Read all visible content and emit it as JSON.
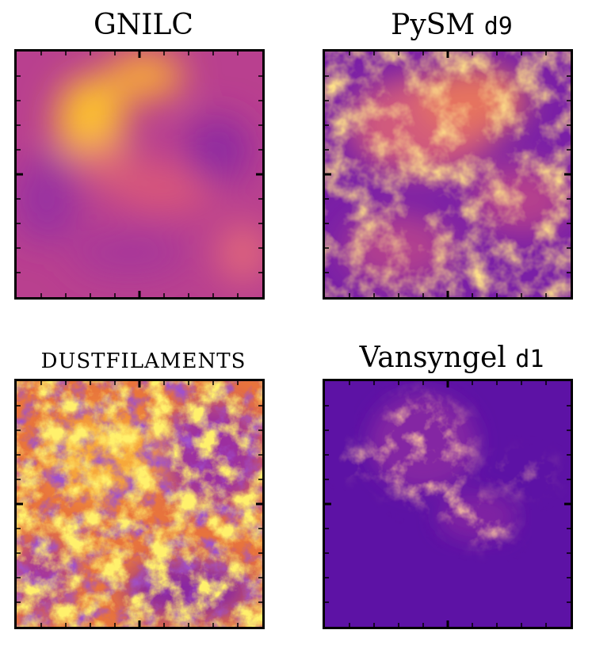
{
  "panels": [
    {
      "id": "gnilc",
      "title": "GNILC",
      "title_code": ""
    },
    {
      "id": "pysm",
      "title": "PySM ",
      "title_code": "d9"
    },
    {
      "id": "dustfilaments",
      "title": "DUSTFILAMENTS",
      "title_code": ""
    },
    {
      "id": "vansyngel",
      "title": "Vansyngel ",
      "title_code": "d1"
    }
  ],
  "colormap": "plasma",
  "colors": {
    "dark": "#5a11a6",
    "mid": "#c0408a",
    "bright": "#fdd92a",
    "frame": "#000000"
  }
}
